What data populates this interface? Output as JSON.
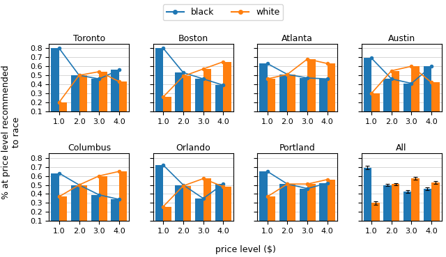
{
  "xlabel": "price level ($)",
  "ylabel": "% at price level recommended\nto race",
  "legend": "upper center",
  "chart_data": [
    {
      "type": "bar",
      "title": "Toronto",
      "categories": [
        "1.0",
        "2.0",
        "3.0",
        "4.0"
      ],
      "ylim": [
        0.1,
        0.85
      ],
      "yticks": [
        0.1,
        0.2,
        0.3,
        0.4,
        0.5,
        0.6,
        0.7,
        0.8
      ],
      "grid": true,
      "series": [
        {
          "name": "black",
          "values": [
            0.8,
            0.5,
            0.46,
            0.56
          ],
          "marker": "o",
          "line_style": "solid"
        },
        {
          "name": "white",
          "values": [
            0.2,
            0.5,
            0.54,
            0.43
          ],
          "marker": "o",
          "line_style": "solid"
        }
      ]
    },
    {
      "type": "bar",
      "title": "Boston",
      "categories": [
        "1.0",
        "2.0",
        "3.0",
        "4.0"
      ],
      "ylim": [
        0.1,
        0.85
      ],
      "yticks": [
        0.1,
        0.2,
        0.3,
        0.4,
        0.5,
        0.6,
        0.7,
        0.8
      ],
      "grid": true,
      "tick_labels": "x",
      "series": [
        {
          "name": "black",
          "values": [
            0.8,
            0.53,
            0.46,
            0.39
          ],
          "marker": "o",
          "line_style": "solid"
        },
        {
          "name": "white",
          "values": [
            0.26,
            0.49,
            0.57,
            0.65
          ],
          "marker": "o",
          "line_style": "solid"
        }
      ]
    },
    {
      "type": "bar",
      "title": "Atlanta",
      "categories": [
        "1.0",
        "2.0",
        "3.0",
        "4.0"
      ],
      "ylim": [
        0.1,
        0.85
      ],
      "yticks": [
        0.1,
        0.2,
        0.3,
        0.4,
        0.5,
        0.6,
        0.7,
        0.8
      ],
      "grid": true,
      "tick_labels": "x",
      "series": [
        {
          "name": "black",
          "values": [
            0.63,
            0.51,
            0.47,
            0.46
          ],
          "marker": "o",
          "line_style": "solid"
        },
        {
          "name": "white",
          "values": [
            0.46,
            0.51,
            0.68,
            0.63
          ],
          "marker": "o",
          "line_style": "solid"
        }
      ]
    },
    {
      "type": "bar",
      "title": "Austin",
      "categories": [
        "1.0",
        "2.0",
        "3.0",
        "4.0"
      ],
      "ylim": [
        0.1,
        0.85
      ],
      "yticks": [
        0.1,
        0.2,
        0.3,
        0.4,
        0.5,
        0.6,
        0.7,
        0.8
      ],
      "grid": true,
      "tick_labels": "x",
      "series": [
        {
          "name": "black",
          "values": [
            0.69,
            0.46,
            0.41,
            0.6
          ],
          "marker": "o",
          "line_style": "solid"
        },
        {
          "name": "white",
          "values": [
            0.3,
            0.55,
            0.6,
            0.42
          ],
          "marker": "o",
          "line_style": "solid"
        }
      ]
    },
    {
      "type": "bar",
      "title": "Columbus",
      "categories": [
        "1.0",
        "2.0",
        "3.0",
        "4.0"
      ],
      "ylim": [
        0.1,
        0.85
      ],
      "yticks": [
        0.1,
        0.2,
        0.3,
        0.4,
        0.5,
        0.6,
        0.7,
        0.8
      ],
      "grid": true,
      "series": [
        {
          "name": "black",
          "values": [
            0.63,
            0.5,
            0.39,
            0.34
          ],
          "marker": "o",
          "line_style": "solid"
        },
        {
          "name": "white",
          "values": [
            0.37,
            0.5,
            0.6,
            0.65
          ],
          "marker": "o",
          "line_style": "solid"
        }
      ]
    },
    {
      "type": "bar",
      "title": "Orlando",
      "categories": [
        "1.0",
        "2.0",
        "3.0",
        "4.0"
      ],
      "ylim": [
        0.1,
        0.85
      ],
      "yticks": [
        0.1,
        0.2,
        0.3,
        0.4,
        0.5,
        0.6,
        0.7,
        0.8
      ],
      "grid": true,
      "tick_labels": "x",
      "series": [
        {
          "name": "black",
          "values": [
            0.72,
            0.5,
            0.35,
            0.51
          ],
          "marker": "o",
          "line_style": "solid"
        },
        {
          "name": "white",
          "values": [
            0.26,
            0.49,
            0.57,
            0.48
          ],
          "marker": "o",
          "line_style": "solid"
        }
      ]
    },
    {
      "type": "bar",
      "title": "Portland",
      "categories": [
        "1.0",
        "2.0",
        "3.0",
        "4.0"
      ],
      "ylim": [
        0.1,
        0.85
      ],
      "yticks": [
        0.1,
        0.2,
        0.3,
        0.4,
        0.5,
        0.6,
        0.7,
        0.8
      ],
      "grid": true,
      "tick_labels": "x",
      "series": [
        {
          "name": "black",
          "values": [
            0.65,
            0.51,
            0.46,
            0.52
          ],
          "marker": "o",
          "line_style": "solid"
        },
        {
          "name": "white",
          "values": [
            0.37,
            0.51,
            0.51,
            0.56
          ],
          "marker": "o",
          "line_style": "solid"
        }
      ]
    },
    {
      "type": "bar",
      "title": "All",
      "categories": [
        "1.0",
        "2.0",
        "3.0",
        "4.0"
      ],
      "ylim": [
        0.1,
        0.85
      ],
      "yticks": [
        0.1,
        0.2,
        0.3,
        0.4,
        0.5,
        0.6,
        0.7,
        0.8
      ],
      "grid": true,
      "tick_labels": "x",
      "series": [
        {
          "name": "black",
          "values": [
            0.69,
            0.5,
            0.43,
            0.46
          ],
          "errors": [
            0.02,
            0.01,
            0.015,
            0.015
          ]
        },
        {
          "name": "white",
          "values": [
            0.3,
            0.51,
            0.57,
            0.53
          ],
          "errors": [
            0.02,
            0.01,
            0.015,
            0.015
          ]
        }
      ]
    }
  ]
}
